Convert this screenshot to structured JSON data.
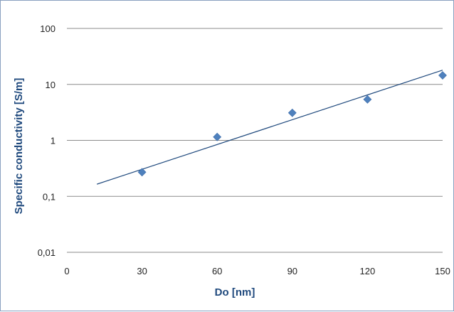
{
  "chart_data": {
    "type": "scatter",
    "title": "",
    "xlabel": "Do [nm]",
    "ylabel": "Specific conductivity [S/m]",
    "xlim": [
      0,
      150
    ],
    "ylim": [
      0.01,
      100
    ],
    "yscale": "log",
    "x_ticks": [
      0,
      30,
      60,
      90,
      120,
      150
    ],
    "x_tick_labels": [
      "0",
      "30",
      "60",
      "90",
      "120",
      "150"
    ],
    "y_ticks": [
      0.01,
      0.1,
      1,
      10,
      100
    ],
    "y_tick_labels": [
      "0,01",
      "0,1",
      "1",
      "10",
      "100"
    ],
    "grid": "horizontal",
    "legend": "none",
    "series": [
      {
        "marker": "diamond",
        "color": "#4f81bd",
        "points": [
          {
            "x": 30,
            "y": 0.27
          },
          {
            "x": 60,
            "y": 1.15
          },
          {
            "x": 90,
            "y": 3.1
          },
          {
            "x": 120,
            "y": 5.4
          },
          {
            "x": 150,
            "y": 14.5
          }
        ]
      }
    ],
    "trendline": {
      "type": "exponential",
      "color": "#1f497d",
      "x_start": 12,
      "x_end": 150,
      "y_start": 0.165,
      "y_end": 18
    }
  }
}
